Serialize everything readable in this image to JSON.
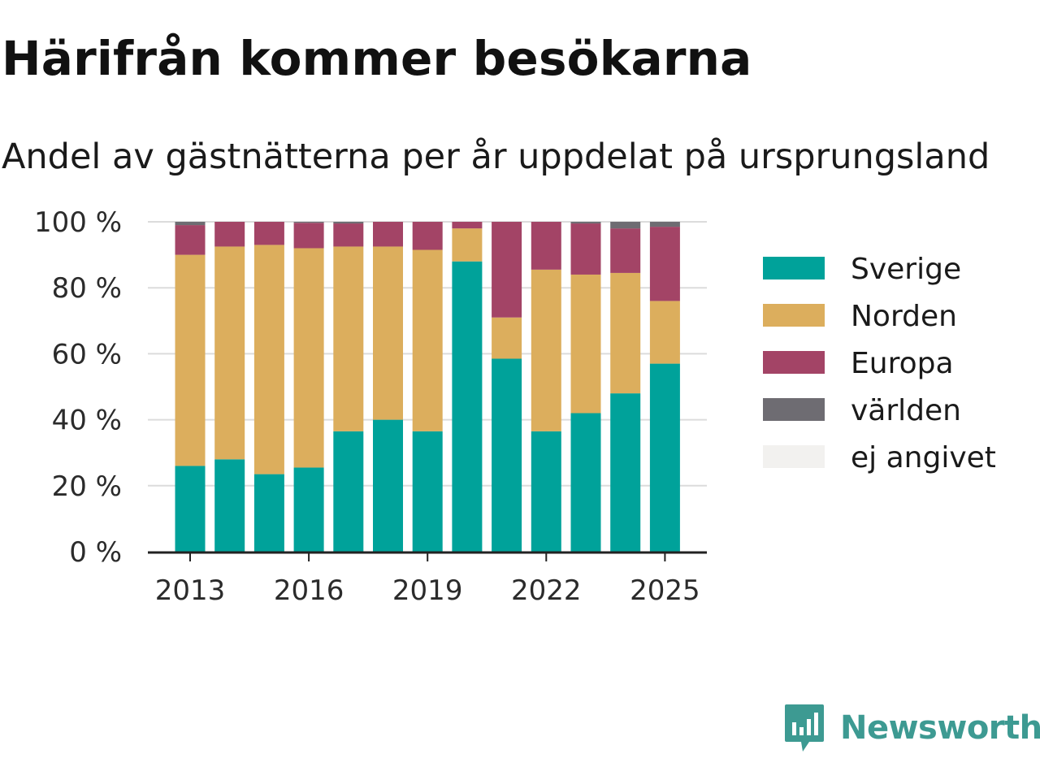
{
  "title": "Härifrån kommer besökarna",
  "subtitle": "Andel av gästnätterna per år uppdelat på ursprungsland",
  "brand": {
    "name": "Newsworthy",
    "icon": "bar-chart-speech-bubble-icon",
    "color": "#3d9a92"
  },
  "chart_data": {
    "type": "bar",
    "stacked": true,
    "categories": [
      "2013",
      "2014",
      "2015",
      "2016",
      "2017",
      "2018",
      "2019",
      "2020",
      "2021",
      "2022",
      "2023",
      "2024",
      "2025"
    ],
    "x_tick_labels": [
      "2013",
      "2016",
      "2019",
      "2022",
      "2025"
    ],
    "y_tick_labels": [
      "0 %",
      "20 %",
      "40 %",
      "60 %",
      "80 %",
      "100 %"
    ],
    "ylim": [
      0,
      100
    ],
    "grid": true,
    "legend_position": "right",
    "series": [
      {
        "name": "Sverige",
        "color": "#00a29a",
        "values": [
          26,
          28,
          23.5,
          25.5,
          36.5,
          40,
          36.5,
          88,
          58.5,
          36.5,
          42,
          48,
          57
        ]
      },
      {
        "name": "Norden",
        "color": "#dcae5d",
        "values": [
          64,
          64.5,
          69.5,
          66.5,
          56,
          52.5,
          55,
          10,
          12.5,
          49,
          42,
          36.5,
          19
        ]
      },
      {
        "name": "Europa",
        "color": "#a34466",
        "values": [
          9,
          7.5,
          7,
          7.7,
          7,
          7.5,
          8.5,
          2,
          29,
          14.5,
          15.5,
          13.5,
          22.5
        ]
      },
      {
        "name": "världen",
        "color": "#6e6c72",
        "values": [
          1,
          0,
          0,
          0.3,
          0.5,
          0,
          0,
          0,
          0,
          0,
          0.5,
          2,
          1.5
        ]
      },
      {
        "name": "ej angivet",
        "color": "#f2f1ef",
        "values": [
          0,
          0,
          0,
          0,
          0,
          0,
          0,
          0,
          0,
          0,
          0,
          0,
          0
        ]
      }
    ]
  }
}
